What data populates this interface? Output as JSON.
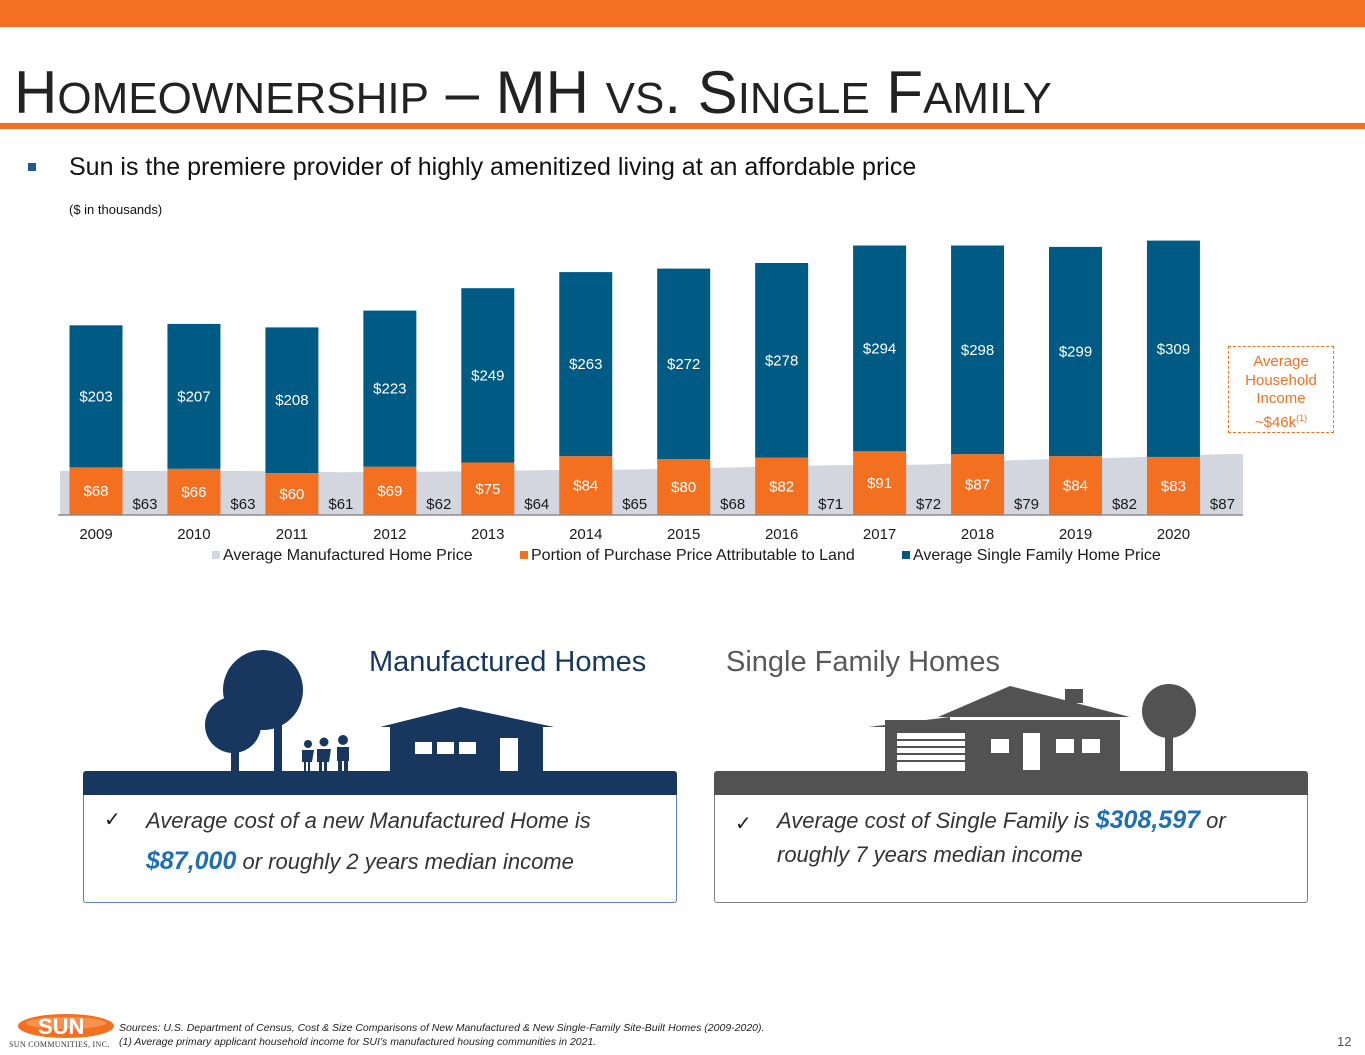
{
  "header": {
    "title_parts": [
      {
        "text": "H",
        "size": "big"
      },
      {
        "text": "OMEOWNERSHIP",
        "size": "small"
      },
      {
        "text": " – MH ",
        "size": "big"
      },
      {
        "text": "VS",
        "size": "small"
      },
      {
        "text": ". S",
        "size": "big"
      },
      {
        "text": "INGLE",
        "size": "small"
      },
      {
        "text": " F",
        "size": "big"
      },
      {
        "text": "AMILY",
        "size": "small"
      }
    ],
    "bullet": "Sun is the premiere provider of highly amenitized living at an affordable price",
    "units_note": "($ in thousands)"
  },
  "colors": {
    "accent_orange": "#f37021",
    "sf_blue": "#005b84",
    "mh_gray": "#d3d6de",
    "navy": "#17375e",
    "dark_gray": "#525252",
    "highlight_blue": "#1f6fb5"
  },
  "chart_data": {
    "type": "bar",
    "categories": [
      "2009",
      "2010",
      "2011",
      "2012",
      "2013",
      "2014",
      "2015",
      "2016",
      "2017",
      "2018",
      "2019",
      "2020"
    ],
    "series": [
      {
        "name": "Average Manufactured Home Price",
        "chart_type": "area",
        "color": "#d3d6de",
        "values": [
          63,
          63,
          61,
          62,
          64,
          65,
          68,
          71,
          72,
          79,
          82,
          87
        ],
        "labels": [
          "$63",
          "$63",
          "$61",
          "$62",
          "$64",
          "$65",
          "$68",
          "$71",
          "$72",
          "$79",
          "$82",
          "$87"
        ]
      },
      {
        "name": "Portion of Purchase Price Attributable to Land",
        "stack": "sf",
        "color": "#f37021",
        "values": [
          68,
          66,
          60,
          69,
          75,
          84,
          80,
          82,
          91,
          87,
          84,
          83
        ],
        "labels": [
          "$68",
          "$66",
          "$60",
          "$69",
          "$75",
          "$84",
          "$80",
          "$82",
          "$91",
          "$87",
          "$84",
          "$83"
        ]
      },
      {
        "name": "Average Single Family Home Price",
        "stack": "sf",
        "color": "#005b84",
        "values": [
          203,
          207,
          208,
          223,
          249,
          263,
          272,
          278,
          294,
          298,
          299,
          309
        ],
        "labels": [
          "$203",
          "$207",
          "$208",
          "$223",
          "$249",
          "$263",
          "$272",
          "$278",
          "$294",
          "$298",
          "$299",
          "$309"
        ]
      }
    ],
    "stacked": true,
    "legend_position": "bottom",
    "grid": false,
    "ylim": [
      0,
      400
    ]
  },
  "income_callout": {
    "line1": "Average",
    "line2": "Household",
    "line3": "Income",
    "line4": "~$46k",
    "footnote_mark": "(1)"
  },
  "manufactured": {
    "heading": "Manufactured Homes",
    "check": "✓",
    "text_before": "Average cost of a new Manufactured Home is ",
    "highlight": "$87,000",
    "text_after": " or roughly 2 years median income"
  },
  "single_family": {
    "heading": "Single Family Homes",
    "check": "✓",
    "text_before": "Average cost of Single Family is ",
    "highlight": "$308,597",
    "text_after": " or roughly 7 years median income"
  },
  "footer": {
    "logo_text": "SUN",
    "company": "SUN COMMUNITIES, INC.",
    "source": "Sources: U.S. Department of Census, Cost & Size Comparisons of New Manufactured & New Single-Family Site-Built Homes (2009-2020).",
    "note": "(1)      Average primary applicant household income for SUI’s manufactured housing communities in 2021.",
    "page_number": "12"
  }
}
